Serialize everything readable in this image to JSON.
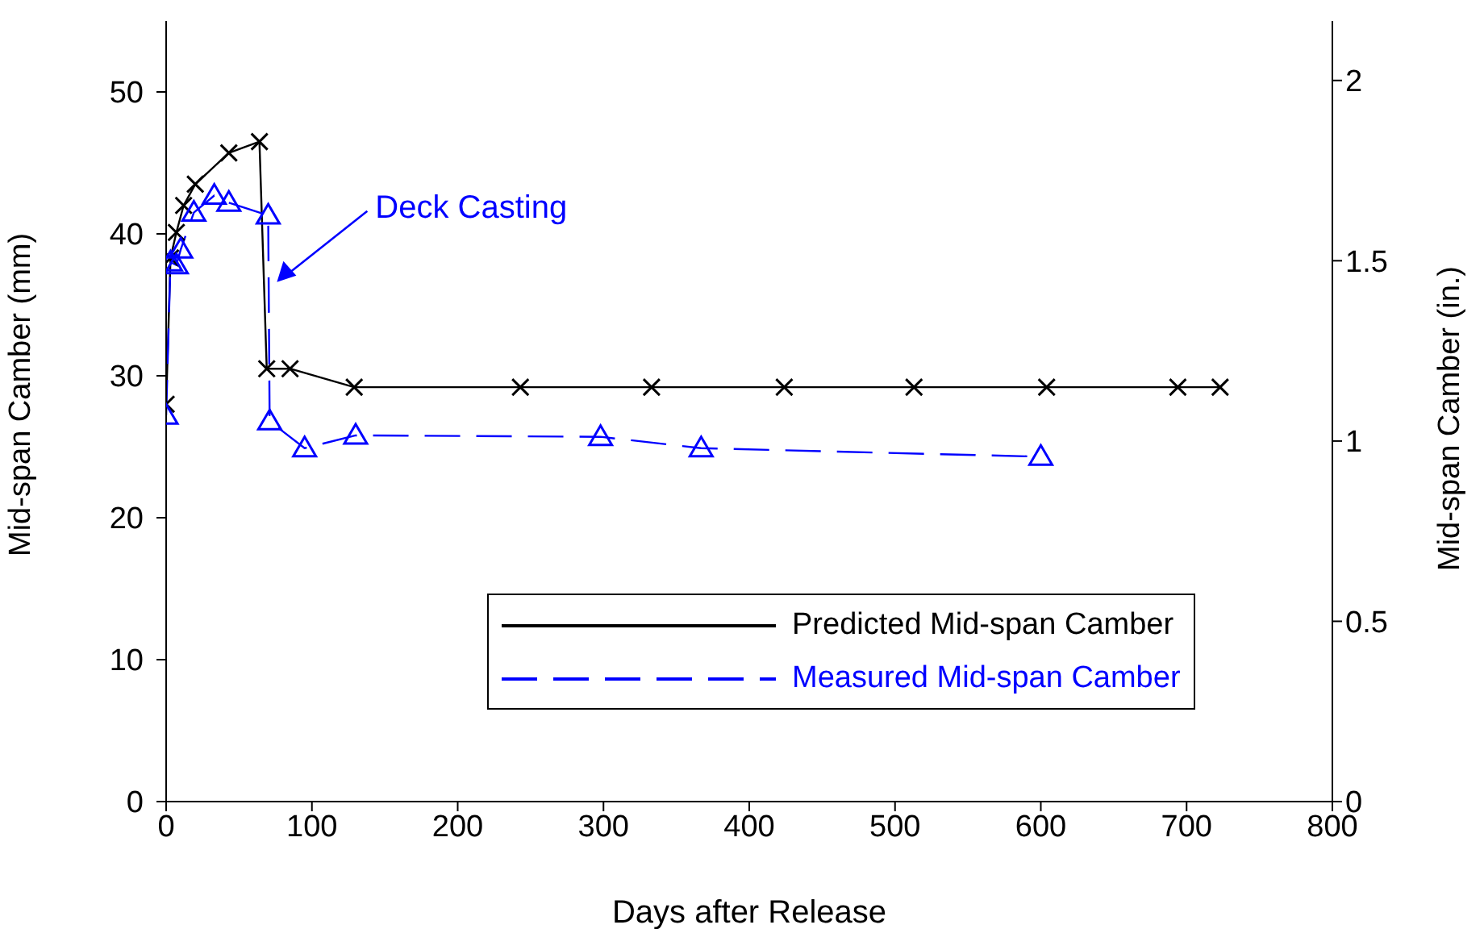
{
  "chart_data": {
    "type": "line",
    "xlabel": "Days after Release",
    "ylabel": "Mid-span Camber (mm)",
    "y2label": "Mid-span Camber (in.)",
    "xlim": [
      0,
      800
    ],
    "xticks": [
      0,
      100,
      200,
      300,
      400,
      500,
      600,
      700,
      800
    ],
    "ylim": [
      0,
      55
    ],
    "yticks": [
      0,
      10,
      20,
      30,
      40,
      50
    ],
    "y2lim": [
      0,
      2.165
    ],
    "y2ticks": [
      0,
      0.5,
      1,
      1.5,
      2
    ],
    "legend": "bottom right",
    "grid": false,
    "annotations": [
      {
        "text": "Deck Casting",
        "x": 76,
        "y": 36.6
      }
    ],
    "series": [
      {
        "name": "Predicted Mid-span Camber",
        "color": "#000000",
        "marker": "cross",
        "line_style": "solid",
        "x": [
          0,
          3,
          7,
          12,
          20,
          43,
          64,
          69,
          85,
          129,
          243,
          333,
          424,
          513,
          604,
          694,
          723
        ],
        "values": [
          28.0,
          38.3,
          40.1,
          42.0,
          43.5,
          45.7,
          46.5,
          30.5,
          30.5,
          29.2,
          29.2,
          29.2,
          29.2,
          29.2,
          29.2,
          29.2,
          29.2
        ]
      },
      {
        "name": "Measured Mid-span Camber",
        "color": "#0000ff",
        "marker": "triangle",
        "line_style": "dashed",
        "x": [
          0,
          3,
          7,
          10,
          19,
          33,
          43,
          70,
          71,
          95,
          130,
          298,
          367,
          600
        ],
        "values": [
          27.2,
          38.0,
          37.8,
          38.9,
          41.5,
          42.7,
          42.2,
          41.3,
          26.8,
          24.9,
          25.8,
          25.7,
          24.9,
          24.3
        ]
      }
    ]
  }
}
